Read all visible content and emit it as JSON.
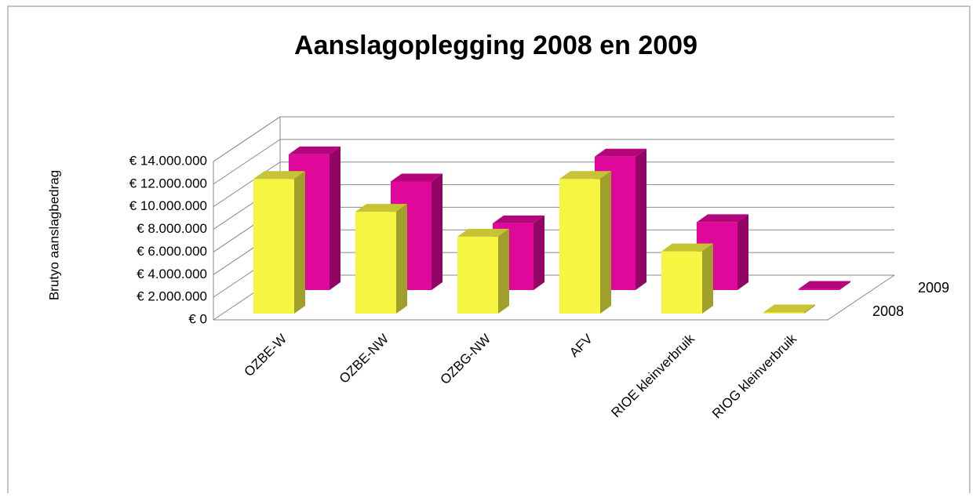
{
  "chart_data": {
    "type": "bar3d",
    "title": "Aanslagoplegging 2008 en 2009",
    "y_label": "Brutyo aanslagbedrag",
    "categories": [
      "OZBE-W",
      "OZBE-NW",
      "OZBG-NW",
      "AFV",
      "RIOE kleinverbruik",
      "RIOG kleinverbruik"
    ],
    "series": [
      {
        "name": "2008",
        "color": "#f5f542",
        "values": [
          11900000,
          9000000,
          6800000,
          11900000,
          5500000,
          100000
        ]
      },
      {
        "name": "2009",
        "color": "#e0089a",
        "values": [
          12000000,
          9600000,
          5900000,
          11800000,
          6000000,
          100000
        ]
      }
    ],
    "ylim": [
      0,
      14000000
    ],
    "yticks": [
      {
        "value": 0,
        "label": "€ 0"
      },
      {
        "value": 2000000,
        "label": "€ 2.000.000"
      },
      {
        "value": 4000000,
        "label": "€ 4.000.000"
      },
      {
        "value": 6000000,
        "label": "€ 6.000.000"
      },
      {
        "value": 8000000,
        "label": "€ 8.000.000"
      },
      {
        "value": 10000000,
        "label": "€ 10.000.000"
      },
      {
        "value": 12000000,
        "label": "€ 12.000.000"
      },
      {
        "value": 14000000,
        "label": "€ 14.000.000"
      }
    ],
    "grid": true
  }
}
